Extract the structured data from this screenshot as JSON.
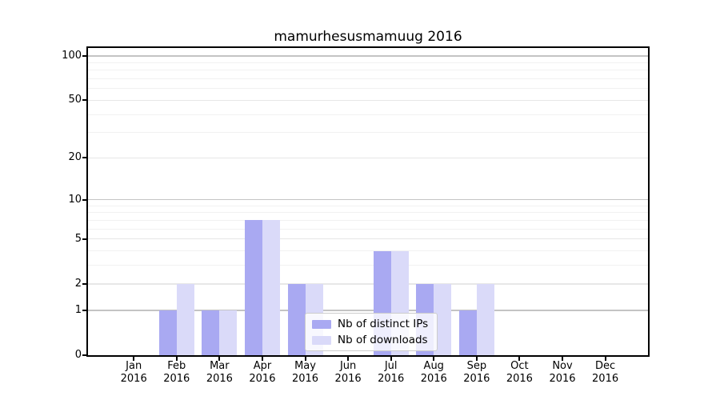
{
  "chart_data": {
    "type": "bar",
    "title": "mamurhesusmamuug 2016",
    "categories": [
      {
        "month": "Jan",
        "year": "2016"
      },
      {
        "month": "Feb",
        "year": "2016"
      },
      {
        "month": "Mar",
        "year": "2016"
      },
      {
        "month": "Apr",
        "year": "2016"
      },
      {
        "month": "May",
        "year": "2016"
      },
      {
        "month": "Jun",
        "year": "2016"
      },
      {
        "month": "Jul",
        "year": "2016"
      },
      {
        "month": "Aug",
        "year": "2016"
      },
      {
        "month": "Sep",
        "year": "2016"
      },
      {
        "month": "Oct",
        "year": "2016"
      },
      {
        "month": "Nov",
        "year": "2016"
      },
      {
        "month": "Dec",
        "year": "2016"
      }
    ],
    "series": [
      {
        "name": "Nb of distinct IPs",
        "key": "distinct-ips",
        "color": "#a9a9f2",
        "values": [
          0,
          1,
          1,
          7,
          2,
          0,
          4,
          2,
          1,
          0,
          0,
          0
        ]
      },
      {
        "name": "Nb of downloads",
        "key": "downloads",
        "color": "#dadaf9",
        "values": [
          0,
          2,
          1,
          7,
          2,
          0,
          4,
          2,
          2,
          0,
          0,
          0
        ]
      }
    ],
    "y_axis": {
      "scale": "log1p",
      "ylim": [
        0,
        100
      ],
      "major_ticks": [
        0,
        1,
        2,
        5,
        10,
        20,
        50,
        100
      ],
      "decade_gridlines": [
        1,
        10,
        100
      ],
      "mid_gridlines": [
        2,
        5,
        20,
        50
      ],
      "minor_gridlines": [
        3,
        4,
        6,
        7,
        8,
        9,
        30,
        40,
        60,
        70,
        80,
        90
      ]
    },
    "legend": {
      "position": "lower-center"
    },
    "colors": {
      "background": "#ffffff",
      "axis": "#000000",
      "decade_grid": "#c4c4c4",
      "mid_grid": "#e7e7e7",
      "minor_grid": "#f1f1f1",
      "tick_text": "#000000"
    }
  }
}
